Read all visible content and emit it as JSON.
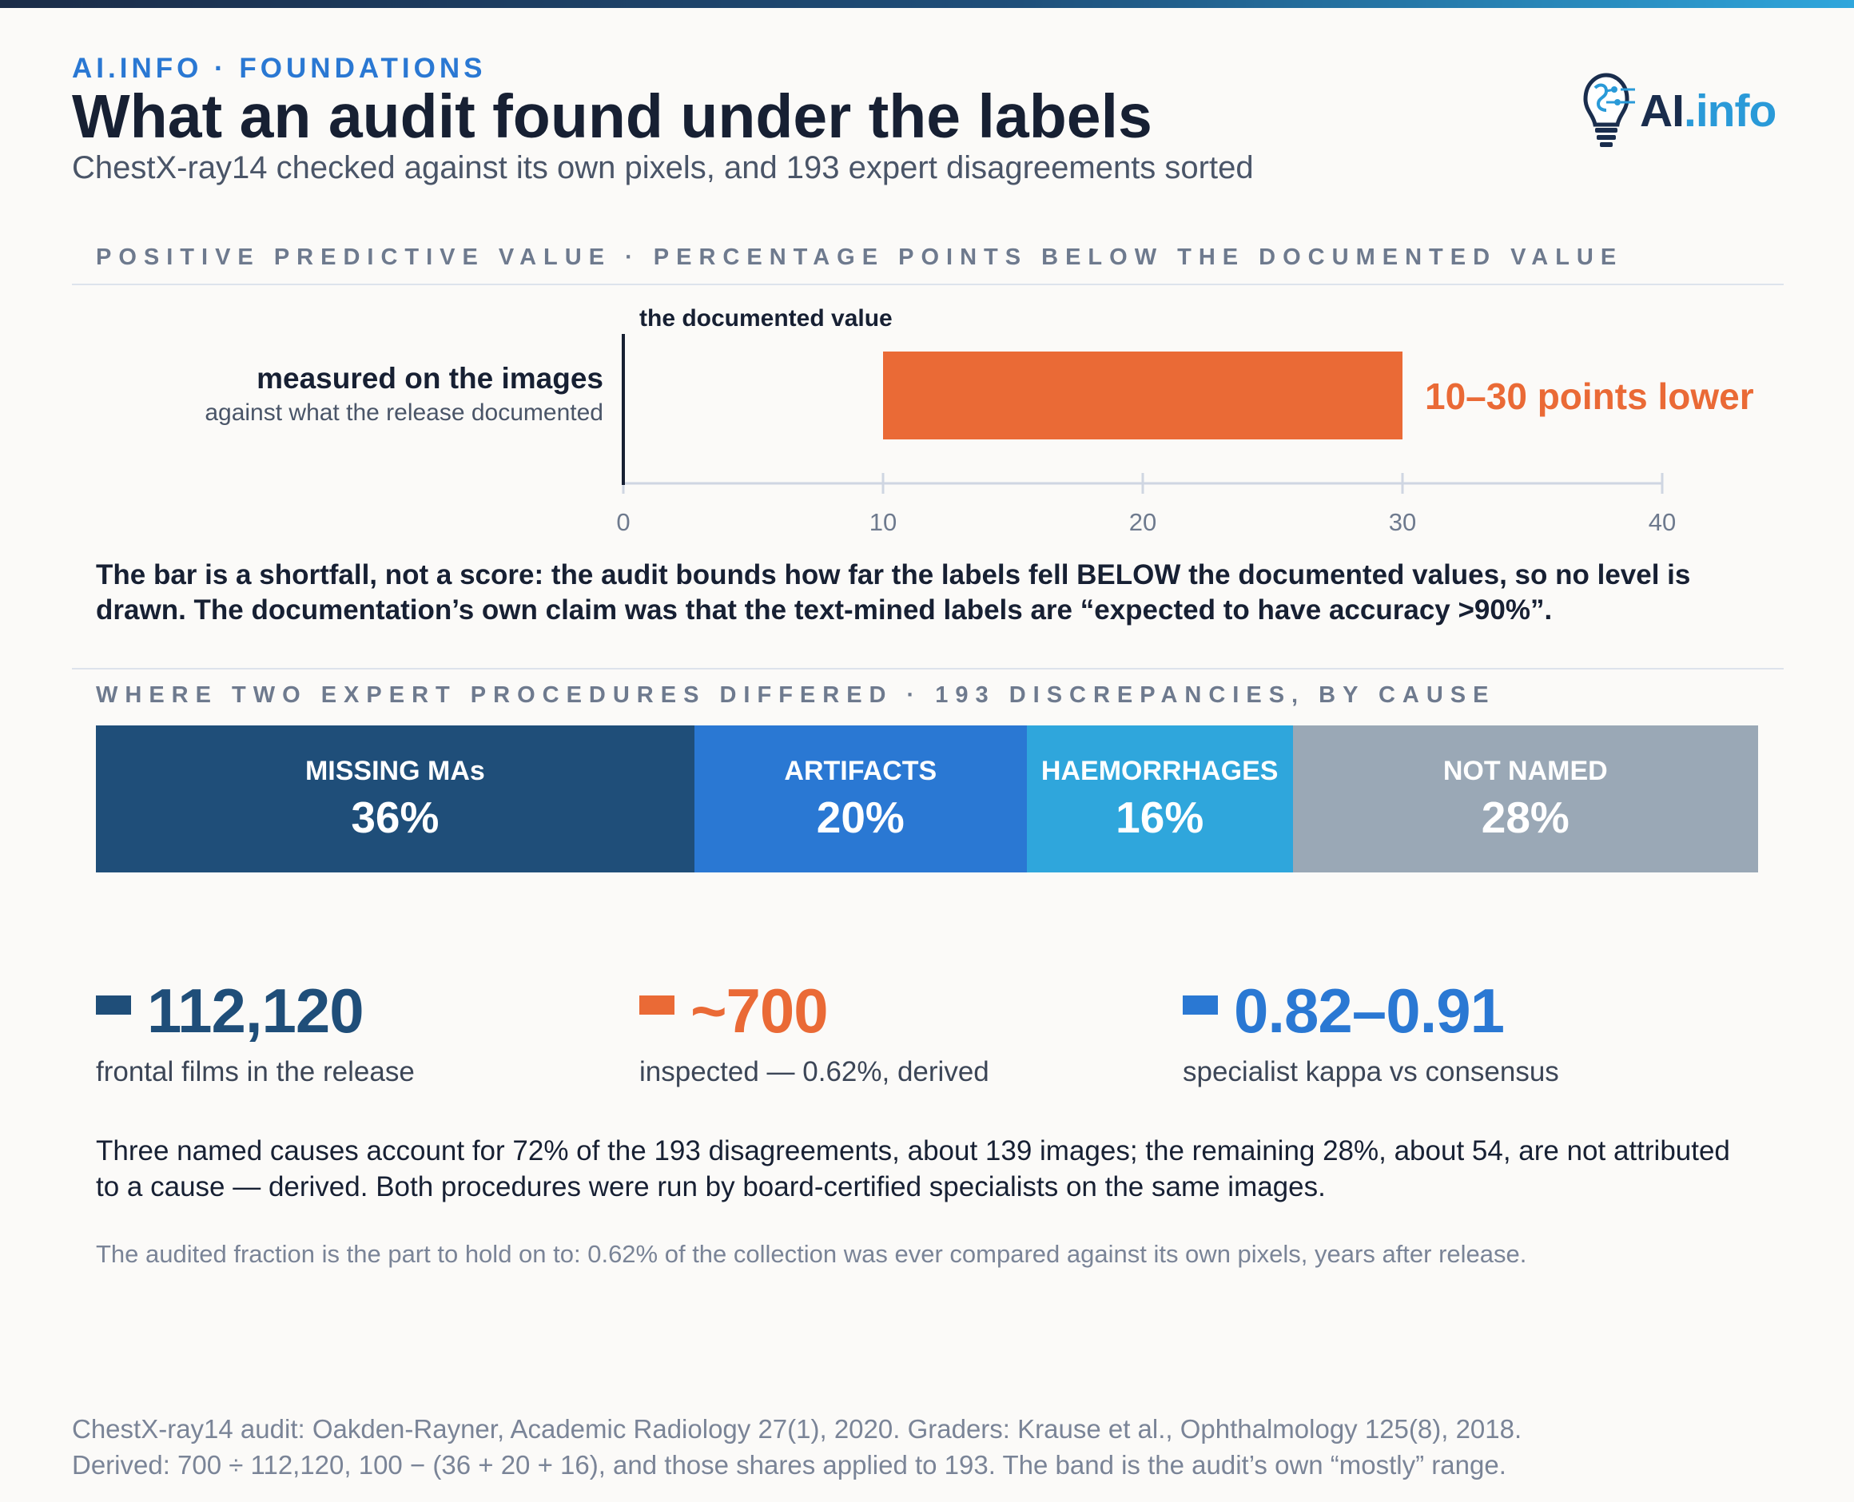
{
  "header": {
    "kicker": "AI.INFO · FOUNDATIONS",
    "title": "What an audit found under the labels",
    "subtitle": "ChestX-ray14 checked against its own pixels, and 193 expert disagreements sorted"
  },
  "logo": {
    "text_ai": "AI",
    "text_info": ".info"
  },
  "sections": {
    "ppv_label": "POSITIVE PREDICTIVE VALUE · PERCENTAGE POINTS BELOW THE DOCUMENTED VALUE",
    "discrepancy_label": "WHERE TWO EXPERT PROCEDURES DIFFERED · 193 DISCREPANCIES, BY CAUSE"
  },
  "chart_data": [
    {
      "type": "bar",
      "orientation": "horizontal",
      "reference_line_label": "the documented value",
      "row_label": "measured on the images",
      "row_sublabel": "against what the release documented",
      "range": [
        10,
        30
      ],
      "range_label": "10–30 points lower",
      "xlim": [
        0,
        40
      ],
      "xticks": [
        0,
        10,
        20,
        30,
        40
      ],
      "colors": {
        "bar": "#ea6a36",
        "axis": "#cfd6e2",
        "reference": "#172033"
      }
    },
    {
      "type": "bar",
      "orientation": "stacked-100",
      "total": 193,
      "segments": [
        {
          "label": "MISSING MAs",
          "value": 36,
          "display": "36%",
          "color": "#1f4e79"
        },
        {
          "label": "ARTIFACTS",
          "value": 20,
          "display": "20%",
          "color": "#2a78d3"
        },
        {
          "label": "HAEMORRHAGES",
          "value": 16,
          "display": "16%",
          "color": "#2fa6dc"
        },
        {
          "label": "NOT NAMED",
          "value": 28,
          "display": "28%",
          "color": "#9aa8b6"
        }
      ]
    }
  ],
  "note": "The bar is a shortfall, not a score: the audit bounds how far the labels fell BELOW the documented values, so no level is drawn. The documentation’s own claim was that the text-mined labels are “expected to have accuracy >90%”.",
  "stats": [
    {
      "value": "112,120",
      "label": "frontal films in the release",
      "color": "#1f4e79"
    },
    {
      "value": "~700",
      "label": "inspected — 0.62%, derived",
      "color": "#ea6a36"
    },
    {
      "value": "0.82–0.91",
      "label": "specialist kappa vs consensus",
      "color": "#2a78d3"
    }
  ],
  "body": "Three named causes account for 72% of the 193 disagreements, about 139 images; the remaining 28%, about 54, are not attributed to a cause — derived. Both procedures were run by board-certified specialists on the same images.",
  "quiet_note": "The audited fraction is the part to hold on to: 0.62% of the collection was ever compared against its own pixels, years after release.",
  "footer": {
    "line1": "ChestX-ray14 audit: Oakden-Rayner, Academic Radiology 27(1), 2020. Graders: Krause et al., Ophthalmology 125(8), 2018.",
    "line2": "Derived: 700 ÷ 112,120, 100 − (36 + 20 + 16), and those shares applied to 193. The band is the audit’s own “mostly” range."
  }
}
